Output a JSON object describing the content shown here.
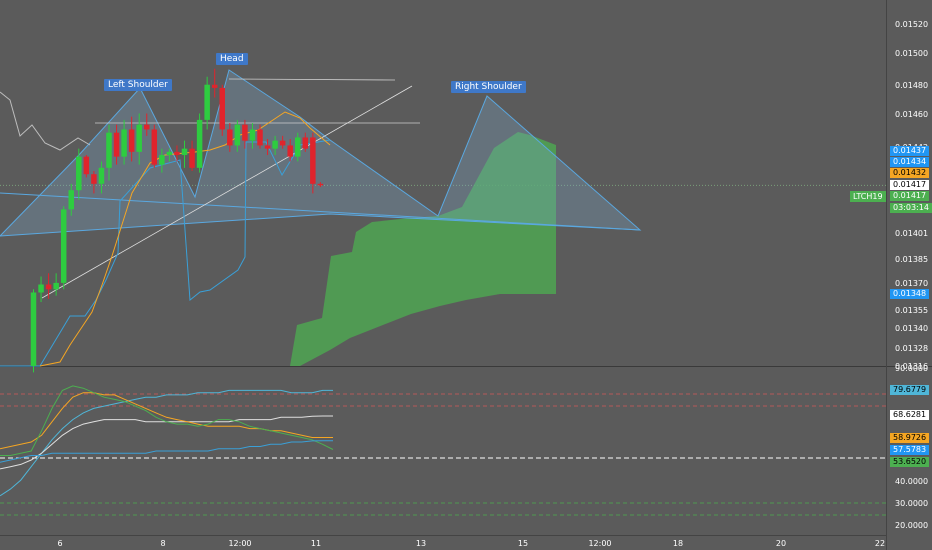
{
  "symbol": "LTCH19",
  "countdown": "03:03:14",
  "annotations": {
    "left_shoulder": "Left Shoulder",
    "head": "Head",
    "right_shoulder": "Right Shoulder"
  },
  "price_axis": {
    "ticks": [
      "0.01520",
      "0.01500",
      "0.01480",
      "0.01460",
      "0.01442",
      "0.01417",
      "0.01401",
      "0.01385",
      "0.01370",
      "0.01355",
      "0.01340",
      "0.01328",
      "0.01316",
      "0.01304"
    ],
    "badges": [
      {
        "text": "0.01437",
        "color": "#2196f3"
      },
      {
        "text": "0.01434",
        "color": "#2196f3"
      },
      {
        "text": "0.01432",
        "color": "#f5a623"
      },
      {
        "text": "0.01417",
        "color": "#ffffff"
      },
      {
        "text": "0.01417",
        "color": "#4caf50"
      },
      {
        "text": "0.01348",
        "color": "#2196f3"
      }
    ]
  },
  "indicator_axis": {
    "ticks": [
      "90.0000",
      "40.0000",
      "30.0000",
      "20.0000"
    ],
    "badges": [
      {
        "text": "79.6779",
        "color": "#4fb6d8"
      },
      {
        "text": "68.6281",
        "color": "#ffffff"
      },
      {
        "text": "58.9726",
        "color": "#f5a623"
      },
      {
        "text": "57.5783",
        "color": "#2196f3"
      },
      {
        "text": "53.6520",
        "color": "#4caf50"
      }
    ]
  },
  "time_axis": [
    "6",
    "8",
    "12:00",
    "11",
    "13",
    "15",
    "12:00",
    "18",
    "20",
    "22"
  ],
  "colors": {
    "up": "#2ecc40",
    "down": "#e0242c",
    "cloud": "#4caf50",
    "tenkan": "#f5a623",
    "kijun": "#3aa0d8",
    "pattern_fill": "#7fa9c9"
  },
  "chart_data": [
    {
      "type": "candlestick",
      "ylim": [
        0.01304,
        0.01528
      ],
      "candles": [
        {
          "o": 0.01304,
          "h": 0.01352,
          "l": 0.013,
          "c": 0.0135
        },
        {
          "o": 0.0135,
          "h": 0.0136,
          "l": 0.01344,
          "c": 0.01355
        },
        {
          "o": 0.01355,
          "h": 0.01362,
          "l": 0.01346,
          "c": 0.01352
        },
        {
          "o": 0.01352,
          "h": 0.01362,
          "l": 0.01348,
          "c": 0.01356
        },
        {
          "o": 0.01356,
          "h": 0.01404,
          "l": 0.01352,
          "c": 0.01402
        },
        {
          "o": 0.01402,
          "h": 0.01418,
          "l": 0.01398,
          "c": 0.01414
        },
        {
          "o": 0.01414,
          "h": 0.0144,
          "l": 0.01408,
          "c": 0.01435
        },
        {
          "o": 0.01435,
          "h": 0.01436,
          "l": 0.01422,
          "c": 0.01424
        },
        {
          "o": 0.01424,
          "h": 0.01426,
          "l": 0.01412,
          "c": 0.01418
        },
        {
          "o": 0.01418,
          "h": 0.01432,
          "l": 0.01412,
          "c": 0.01428
        },
        {
          "o": 0.01428,
          "h": 0.01455,
          "l": 0.0142,
          "c": 0.0145
        },
        {
          "o": 0.0145,
          "h": 0.01455,
          "l": 0.0143,
          "c": 0.01435
        },
        {
          "o": 0.01435,
          "h": 0.01458,
          "l": 0.0143,
          "c": 0.01452
        },
        {
          "o": 0.01452,
          "h": 0.0146,
          "l": 0.01432,
          "c": 0.01438
        },
        {
          "o": 0.01438,
          "h": 0.01462,
          "l": 0.0143,
          "c": 0.01455
        },
        {
          "o": 0.01455,
          "h": 0.01462,
          "l": 0.01448,
          "c": 0.01452
        },
        {
          "o": 0.01452,
          "h": 0.01455,
          "l": 0.01428,
          "c": 0.0143
        },
        {
          "o": 0.0143,
          "h": 0.0144,
          "l": 0.01425,
          "c": 0.01436
        },
        {
          "o": 0.01436,
          "h": 0.0144,
          "l": 0.01432,
          "c": 0.01438
        },
        {
          "o": 0.01438,
          "h": 0.01442,
          "l": 0.01432,
          "c": 0.01436
        },
        {
          "o": 0.01436,
          "h": 0.01445,
          "l": 0.01428,
          "c": 0.0144
        },
        {
          "o": 0.0144,
          "h": 0.01445,
          "l": 0.01426,
          "c": 0.01428
        },
        {
          "o": 0.01428,
          "h": 0.01462,
          "l": 0.01425,
          "c": 0.01458
        },
        {
          "o": 0.01458,
          "h": 0.01485,
          "l": 0.01452,
          "c": 0.0148
        },
        {
          "o": 0.0148,
          "h": 0.0149,
          "l": 0.01472,
          "c": 0.01478
        },
        {
          "o": 0.01478,
          "h": 0.0148,
          "l": 0.01448,
          "c": 0.01452
        },
        {
          "o": 0.01452,
          "h": 0.01456,
          "l": 0.01438,
          "c": 0.01442
        },
        {
          "o": 0.01442,
          "h": 0.01458,
          "l": 0.01438,
          "c": 0.01455
        },
        {
          "o": 0.01455,
          "h": 0.01458,
          "l": 0.0144,
          "c": 0.01445
        },
        {
          "o": 0.01445,
          "h": 0.01456,
          "l": 0.0144,
          "c": 0.01452
        },
        {
          "o": 0.01452,
          "h": 0.01455,
          "l": 0.0144,
          "c": 0.01442
        },
        {
          "o": 0.01442,
          "h": 0.01446,
          "l": 0.01436,
          "c": 0.0144
        },
        {
          "o": 0.0144,
          "h": 0.01448,
          "l": 0.01436,
          "c": 0.01445
        },
        {
          "o": 0.01445,
          "h": 0.01448,
          "l": 0.0144,
          "c": 0.01442
        },
        {
          "o": 0.01442,
          "h": 0.01446,
          "l": 0.01432,
          "c": 0.01435
        },
        {
          "o": 0.01435,
          "h": 0.0145,
          "l": 0.01432,
          "c": 0.01447
        },
        {
          "o": 0.01447,
          "h": 0.0145,
          "l": 0.01438,
          "c": 0.0144
        },
        {
          "o": 0.01447,
          "h": 0.0145,
          "l": 0.01412,
          "c": 0.01418
        },
        {
          "o": 0.01418,
          "h": 0.01419,
          "l": 0.01416,
          "c": 0.01417
        }
      ]
    },
    {
      "type": "line",
      "ylim": [
        20,
        90
      ],
      "series": [
        {
          "color": "#4fb6d8",
          "values": [
            33,
            36,
            40,
            46,
            52,
            58,
            63,
            67,
            70,
            72,
            73,
            74,
            75,
            76,
            77,
            77,
            78,
            78,
            78,
            79,
            79,
            79,
            80,
            80,
            80,
            80,
            80,
            80,
            79,
            79,
            79,
            80,
            80
          ]
        },
        {
          "color": "#e0e0e0",
          "values": [
            45,
            46,
            47,
            49,
            52,
            56,
            60,
            63,
            65,
            66,
            67,
            67,
            67,
            67,
            66,
            66,
            66,
            66,
            66,
            66,
            66,
            66,
            66,
            67,
            67,
            67,
            67,
            68,
            68,
            68,
            68.5,
            68.6,
            68.6
          ]
        },
        {
          "color": "#f5a623",
          "values": [
            54,
            55,
            56,
            57,
            60,
            66,
            72,
            77,
            79,
            79,
            78,
            78,
            76,
            74,
            72,
            70,
            68,
            67,
            66,
            65,
            64,
            64,
            64,
            64,
            63,
            63,
            62,
            62,
            61,
            60,
            59,
            59,
            59
          ]
        },
        {
          "color": "#4caf50",
          "values": [
            51,
            51,
            52,
            53,
            62,
            72,
            80,
            82,
            81,
            79,
            77,
            76,
            75,
            73,
            71,
            68,
            66,
            65,
            65,
            64,
            65,
            67,
            67,
            66,
            64,
            63,
            62,
            61,
            60,
            59,
            58,
            56,
            53.65
          ]
        },
        {
          "color": "#3aa0d8",
          "values": [
            48,
            49,
            50,
            51,
            51,
            52,
            52,
            52,
            52,
            52,
            52,
            52,
            52,
            52,
            52,
            53,
            53,
            53,
            53,
            53,
            53,
            54,
            54,
            54,
            55,
            55,
            56,
            56,
            57,
            57,
            57.5,
            57.6,
            57.6
          ]
        }
      ]
    }
  ]
}
